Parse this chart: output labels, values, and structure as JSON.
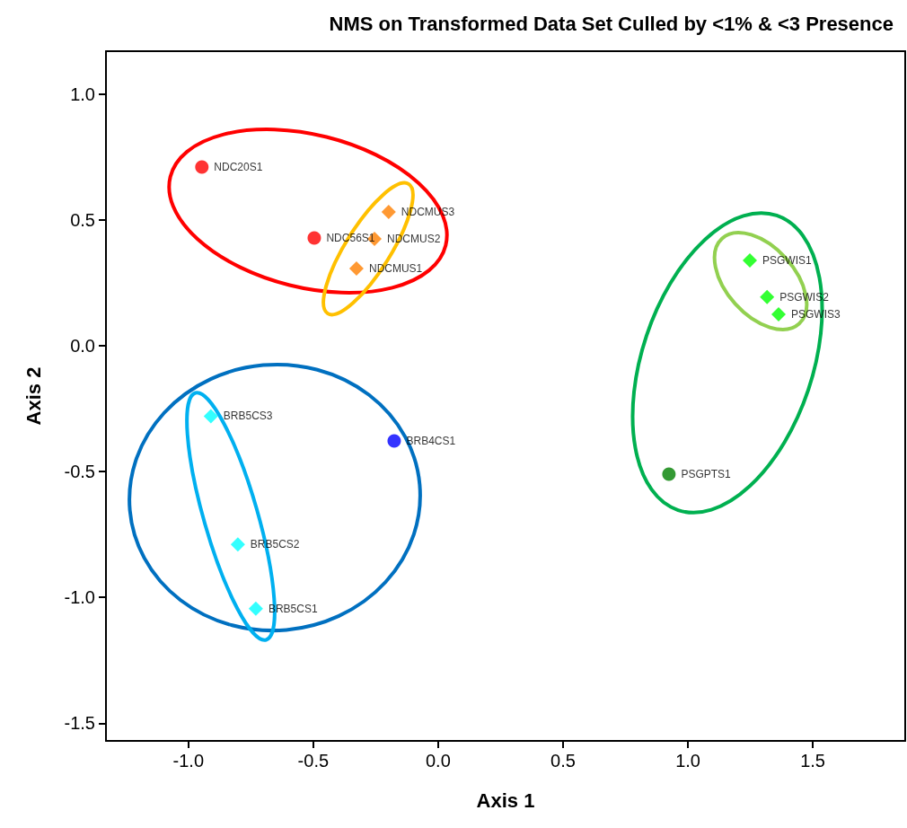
{
  "chart_data": {
    "type": "scatter",
    "title": "NMS on Transformed Data Set Culled by <1% & <3 Presence",
    "xlabel": "Axis 1",
    "ylabel": "Axis 2",
    "xlim": [
      -1.33,
      1.87
    ],
    "ylim": [
      -1.57,
      1.17
    ],
    "xticks": [
      {
        "value": -1,
        "label": "-1.0"
      },
      {
        "value": -0.5,
        "label": "-0.5"
      },
      {
        "value": 0,
        "label": "0.0"
      },
      {
        "value": 0.5,
        "label": "0.5"
      },
      {
        "value": 1,
        "label": "1.0"
      },
      {
        "value": 1.5,
        "label": "1.5"
      }
    ],
    "yticks": [
      {
        "value": -1.5,
        "label": "-1.5"
      },
      {
        "value": -1,
        "label": "-1.0"
      },
      {
        "value": -0.5,
        "label": "-0.5"
      },
      {
        "value": 0,
        "label": "0.0"
      },
      {
        "value": 0.5,
        "label": "0.5"
      },
      {
        "value": 1,
        "label": "1.0"
      }
    ],
    "series": [
      {
        "name": "NDC20S1",
        "marker": "circle",
        "color": "#ff0000",
        "x": [
          -0.946
        ],
        "values": [
          0.71
        ]
      },
      {
        "name": "NDC56S1",
        "marker": "circle",
        "color": "#ff0000",
        "x": [
          -0.496
        ],
        "values": [
          0.428
        ]
      },
      {
        "name": "NDCMUS3",
        "marker": "diamond",
        "color": "#ff7f00",
        "x": [
          -0.198
        ],
        "values": [
          0.531
        ]
      },
      {
        "name": "NDCMUS2",
        "marker": "diamond",
        "color": "#ff7f00",
        "x": [
          -0.255
        ],
        "values": [
          0.424
        ]
      },
      {
        "name": "NDCMUS1",
        "marker": "diamond",
        "color": "#ff7f00",
        "x": [
          -0.327
        ],
        "values": [
          0.307
        ]
      },
      {
        "name": "PSGWIS1",
        "marker": "diamond",
        "color": "#00ff00",
        "x": [
          1.248
        ],
        "values": [
          0.339
        ]
      },
      {
        "name": "PSGWIS2",
        "marker": "diamond",
        "color": "#00ff00",
        "x": [
          1.317
        ],
        "values": [
          0.193
        ]
      },
      {
        "name": "PSGWIS3",
        "marker": "diamond",
        "color": "#00ff00",
        "x": [
          1.363
        ],
        "values": [
          0.125
        ]
      },
      {
        "name": "PSGPTS1",
        "marker": "circle",
        "color": "#008000",
        "x": [
          0.924
        ],
        "values": [
          -0.51
        ]
      },
      {
        "name": "BRB5CS3",
        "marker": "diamond",
        "color": "#00ffff",
        "x": [
          -0.91
        ],
        "values": [
          -0.28
        ]
      },
      {
        "name": "BRB4CS1",
        "marker": "circle",
        "color": "#0000ff",
        "x": [
          -0.176
        ],
        "values": [
          -0.378
        ]
      },
      {
        "name": "BRB5CS2",
        "marker": "diamond",
        "color": "#00ffff",
        "x": [
          -0.802
        ],
        "values": [
          -0.79
        ]
      },
      {
        "name": "BRB5CS1",
        "marker": "diamond",
        "color": "#00ffff",
        "x": [
          -0.73
        ],
        "values": [
          -1.045
        ]
      }
    ]
  }
}
